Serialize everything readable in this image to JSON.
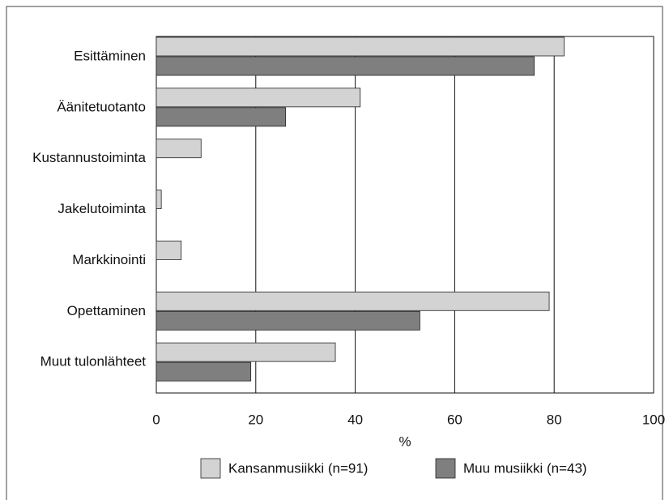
{
  "chart_data": {
    "type": "hbar",
    "categories": [
      "Esittäminen",
      "Äänitetuotanto",
      "Kustannustoiminta",
      "Jakelutoiminta",
      "Markkinointi",
      "Opettaminen",
      "Muut tulonlähteet"
    ],
    "series": [
      {
        "name": "Kansanmusiikki (n=91)",
        "color": "#d3d3d3",
        "values": [
          82,
          41,
          9,
          1,
          5,
          79,
          36
        ]
      },
      {
        "name": "Muu musiikki (n=43)",
        "color": "#7f7f7f",
        "values": [
          76,
          26,
          0,
          0,
          0,
          53,
          19
        ]
      }
    ],
    "xlabel": "%",
    "xlim": [
      0,
      100
    ],
    "xticks": [
      0,
      20,
      40,
      60,
      80,
      100
    ],
    "grid": true
  }
}
